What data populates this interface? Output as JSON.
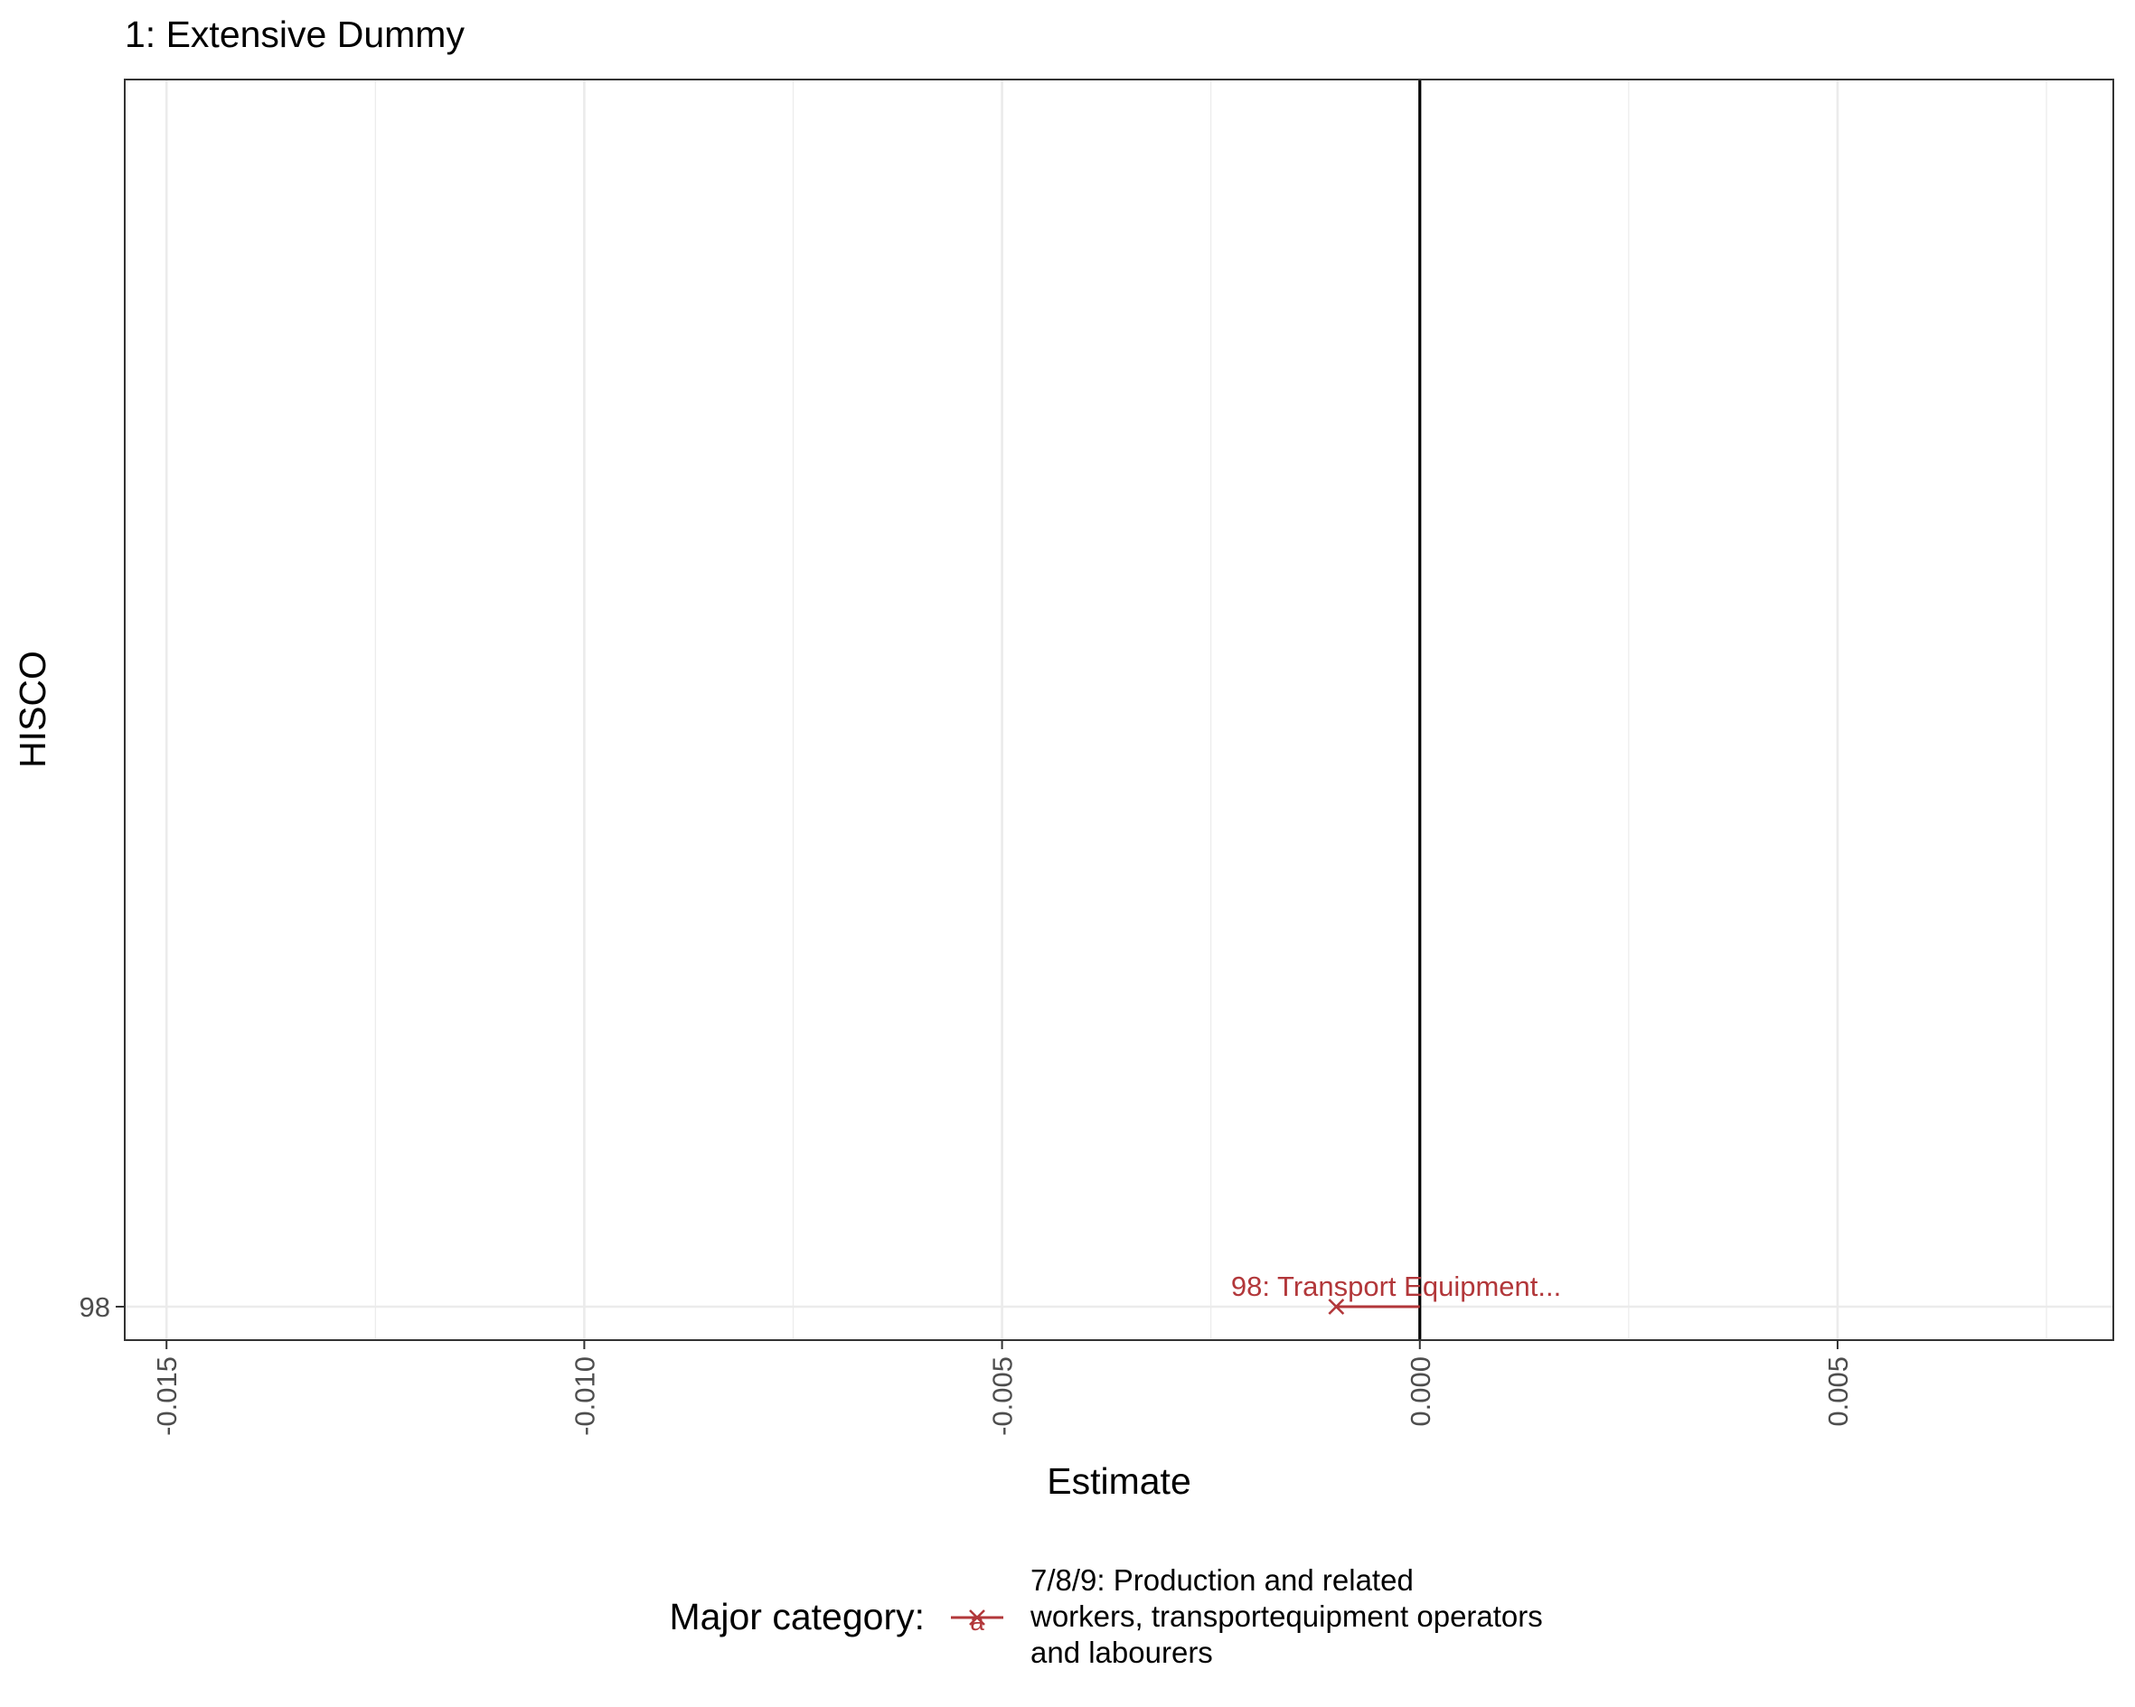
{
  "chart_data": {
    "type": "scatter",
    "title": "1: Extensive Dummy",
    "xlabel": "Estimate",
    "ylabel": "HISCO",
    "xlim": [
      -0.0155,
      0.0083
    ],
    "x_ticks": [
      -0.015,
      -0.01,
      -0.005,
      0.0,
      0.005
    ],
    "x_tick_labels": [
      "-0.015",
      "-0.010",
      "-0.005",
      "0.000",
      "0.005"
    ],
    "y_categories": [
      "98"
    ],
    "reference_line_x": 0,
    "grid": true,
    "points": [
      {
        "y": "98",
        "x": -0.001,
        "ci": [
          -0.001,
          0.0
        ],
        "label": "98: Transport Equipment...",
        "marker": "x",
        "color": "#b2373a"
      }
    ],
    "legend": {
      "position": "bottom",
      "title": "Major category:",
      "items": [
        {
          "label_lines": [
            "7/8/9: Production and related",
            "workers, transportequipment operators",
            "and labourers"
          ],
          "color": "#b2373a",
          "glyph": "a"
        }
      ]
    }
  }
}
